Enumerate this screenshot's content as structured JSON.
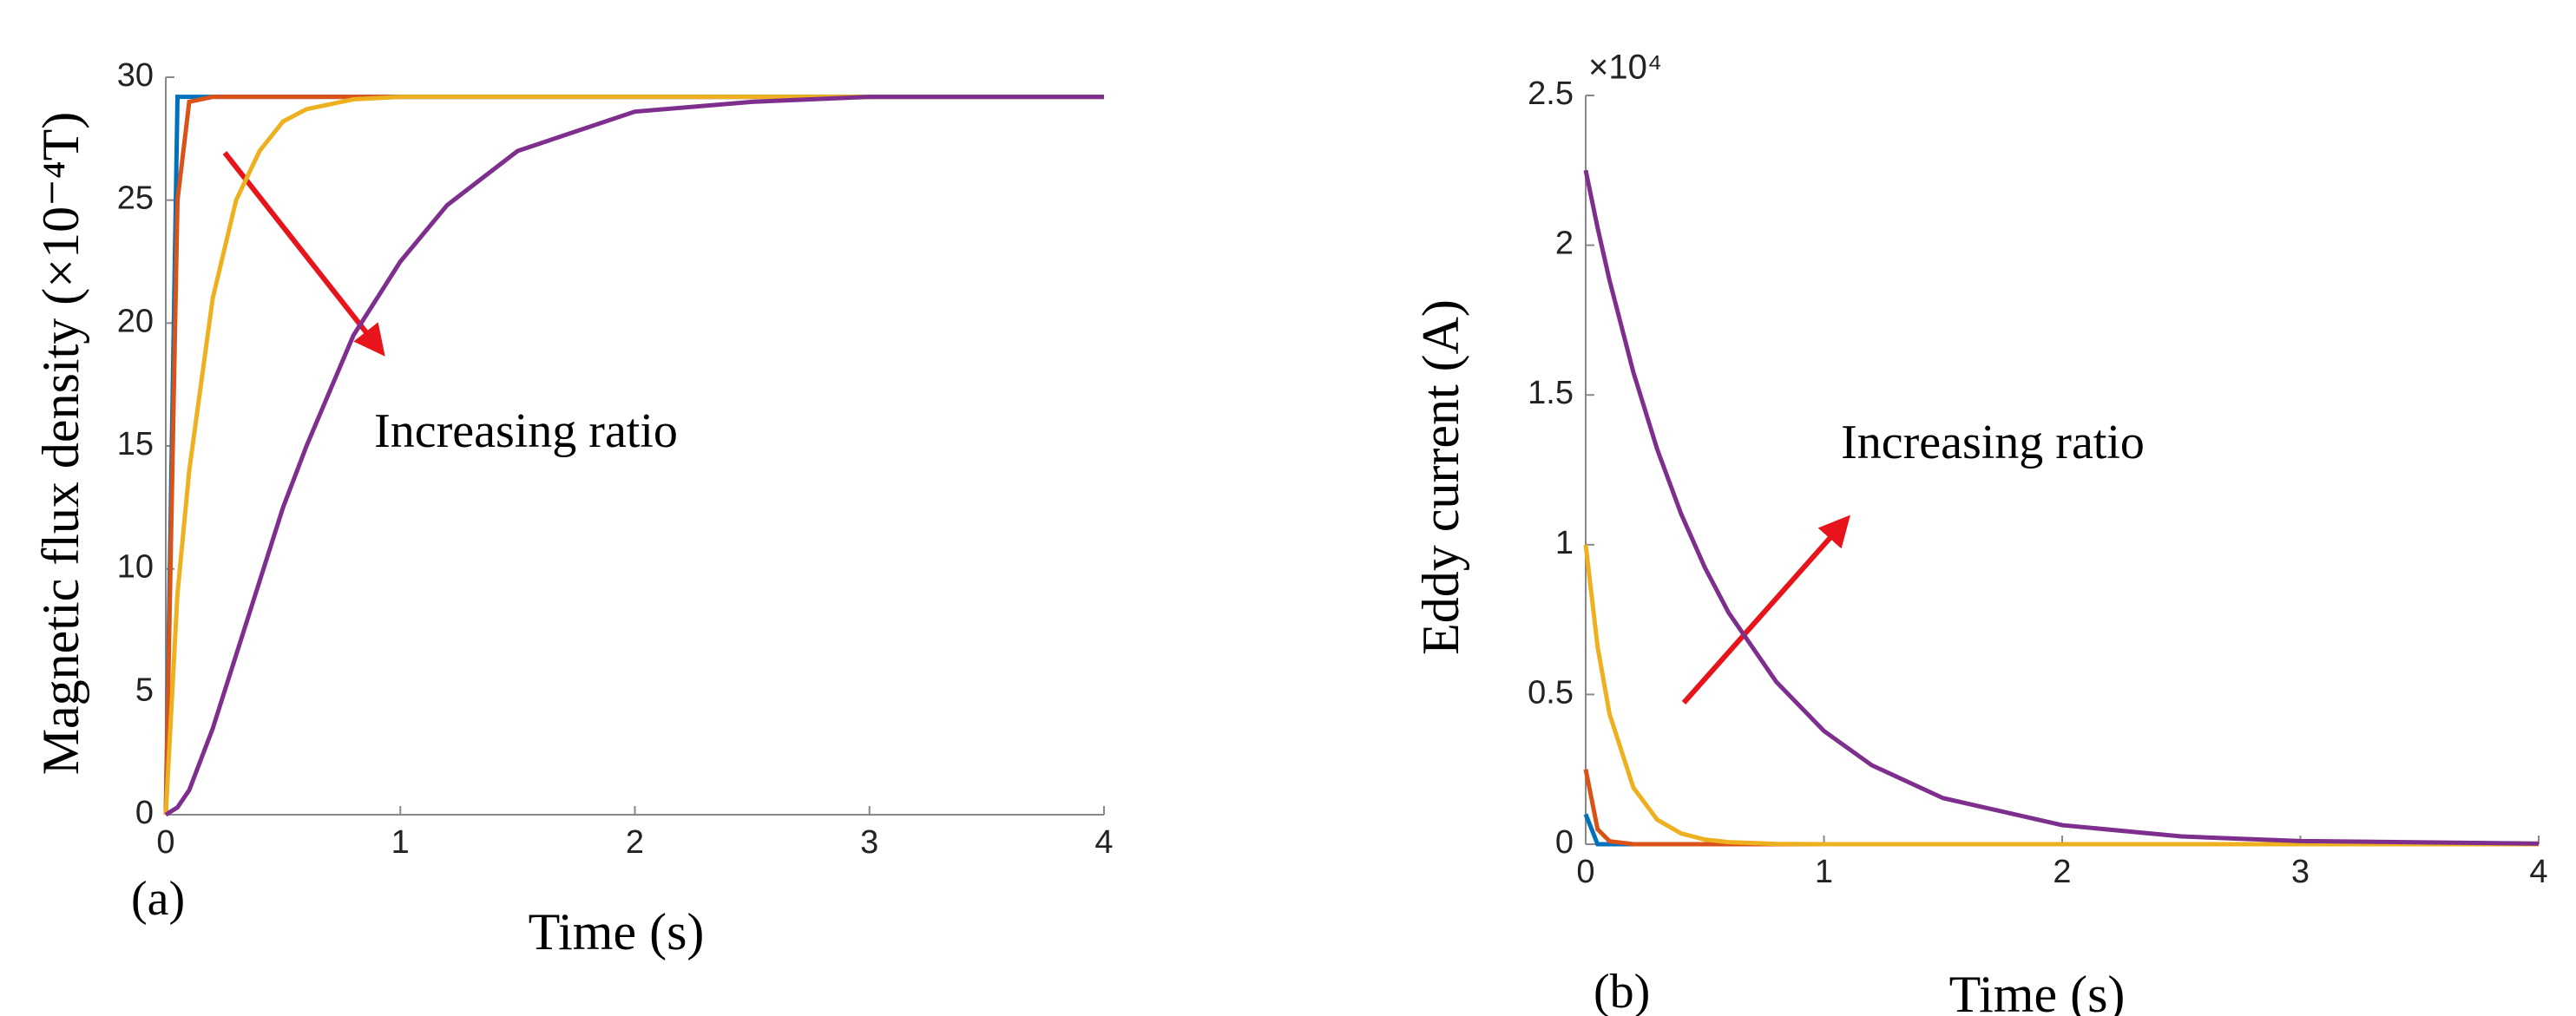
{
  "chart_data": [
    {
      "type": "line",
      "panel_label": "(a)",
      "xlabel": "Time (s)",
      "ylabel": "Magnetic flux density (×10⁻⁴T)",
      "annotation": "Increasing ratio",
      "x": [
        0,
        0.05,
        0.1,
        0.2,
        0.3,
        0.4,
        0.5,
        0.6,
        0.8,
        1,
        1.2,
        1.5,
        2,
        2.5,
        3,
        4
      ],
      "xlim": [
        0,
        4
      ],
      "xticks": [
        0,
        1,
        2,
        3,
        4
      ],
      "ylim": [
        0,
        30
      ],
      "yticks": [
        0,
        5,
        10,
        15,
        20,
        25,
        30
      ],
      "series": [
        {
          "color": "#0072bd",
          "values": [
            0,
            29.2,
            29.2,
            29.2,
            29.2,
            29.2,
            29.2,
            29.2,
            29.2,
            29.2,
            29.2,
            29.2,
            29.2,
            29.2,
            29.2,
            29.2
          ]
        },
        {
          "color": "#d95319",
          "values": [
            0,
            25,
            29,
            29.2,
            29.2,
            29.2,
            29.2,
            29.2,
            29.2,
            29.2,
            29.2,
            29.2,
            29.2,
            29.2,
            29.2,
            29.2
          ]
        },
        {
          "color": "#edb120",
          "values": [
            0,
            9,
            14,
            21,
            25,
            27,
            28.2,
            28.7,
            29.1,
            29.2,
            29.2,
            29.2,
            29.2,
            29.2,
            29.2,
            29.2
          ]
        },
        {
          "color": "#7e2f8e",
          "values": [
            0,
            0.3,
            1,
            3.5,
            6.5,
            9.5,
            12.5,
            15,
            19.5,
            22.5,
            24.8,
            27,
            28.6,
            29,
            29.2,
            29.2
          ]
        }
      ]
    },
    {
      "type": "line",
      "panel_label": "(b)",
      "xlabel": "Time (s)",
      "ylabel": "Eddy current (A)",
      "annotation": "Increasing ratio",
      "y_multiplier": "×10⁴",
      "x": [
        0,
        0.05,
        0.1,
        0.2,
        0.3,
        0.4,
        0.5,
        0.6,
        0.8,
        1,
        1.2,
        1.5,
        2,
        2.5,
        3,
        4
      ],
      "xlim": [
        0,
        4
      ],
      "xticks": [
        0,
        1,
        2,
        3,
        4
      ],
      "ylim": [
        0,
        25000
      ],
      "yticks": [
        0,
        {
          "value": 5000,
          "label": "0.5"
        },
        {
          "value": 10000,
          "label": "1"
        },
        {
          "value": 15000,
          "label": "1.5"
        },
        {
          "value": 20000,
          "label": "2"
        },
        {
          "value": 25000,
          "label": "2.5"
        }
      ],
      "series": [
        {
          "color": "#0072bd",
          "values": [
            1000,
            0,
            0,
            0,
            0,
            0,
            0,
            0,
            0,
            0,
            0,
            0,
            0,
            0,
            0,
            0
          ]
        },
        {
          "color": "#d95319",
          "values": [
            2500,
            500,
            100,
            0,
            0,
            0,
            0,
            0,
            0,
            0,
            0,
            0,
            0,
            0,
            0,
            0
          ]
        },
        {
          "color": "#edb120",
          "values": [
            10000,
            6590,
            4350,
            1890,
            820,
            360,
            155,
            70,
            10,
            0,
            0,
            0,
            0,
            0,
            0,
            0
          ]
        },
        {
          "color": "#7e2f8e",
          "values": [
            22500,
            20580,
            18830,
            15760,
            13190,
            11040,
            9240,
            7730,
            5420,
            3780,
            2640,
            1540,
            635,
            260,
            105,
            20
          ]
        }
      ]
    }
  ]
}
